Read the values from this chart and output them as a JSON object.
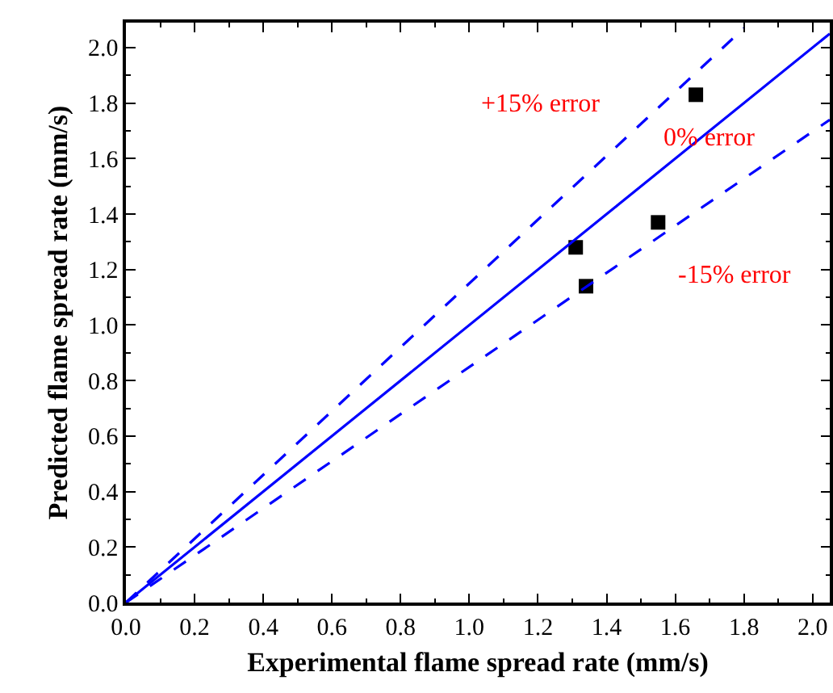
{
  "chart_data": {
    "type": "scatter",
    "xlabel": "Experimental flame spread rate (mm/s)",
    "ylabel": "Predicted flame spread rate (mm/s)",
    "xlim": [
      0,
      2.05
    ],
    "ylim": [
      0,
      2.09
    ],
    "xticks": [
      {
        "value": 0,
        "label": "0.0"
      },
      {
        "value": 0.2,
        "label": "0.2"
      },
      {
        "value": 0.4,
        "label": "0.4"
      },
      {
        "value": 0.6,
        "label": "0.6"
      },
      {
        "value": 0.8,
        "label": "0.8"
      },
      {
        "value": 1,
        "label": "1.0"
      },
      {
        "value": 1.2,
        "label": "1.2"
      },
      {
        "value": 1.4,
        "label": "1.4"
      },
      {
        "value": 1.6,
        "label": "1.6"
      },
      {
        "value": 1.8,
        "label": "1.8"
      },
      {
        "value": 2,
        "label": "2.0"
      }
    ],
    "yticks": [
      {
        "value": 0,
        "label": "0.0"
      },
      0.2,
      0.4,
      0.6,
      0.8,
      {
        "value": 1,
        "label": "1.0"
      },
      1.2,
      1.4,
      1.6,
      1.8,
      {
        "value": 2,
        "label": "2.0"
      }
    ],
    "grid": false,
    "series": [
      {
        "color": "#000000",
        "marker": "square",
        "x": [
          1.31,
          1.34,
          1.55,
          1.66
        ],
        "values": [
          1.28,
          1.14,
          1.37,
          1.83
        ]
      },
      {
        "type": "line",
        "color": "#0000ff",
        "line_style": "solid",
        "marker": "none",
        "x": [
          0,
          2.05
        ],
        "values": [
          0,
          2.05
        ]
      },
      {
        "type": "line",
        "color": "#0000ff",
        "line_style": "dashed",
        "marker": "none",
        "x": [
          0,
          1.8
        ],
        "values": [
          0,
          2.07
        ]
      },
      {
        "type": "line",
        "color": "#0000ff",
        "line_style": "dashed",
        "marker": "none",
        "x": [
          0,
          2.05
        ],
        "values": [
          0,
          1.74
        ]
      }
    ],
    "annotations": [
      "+15% error",
      "0% error",
      "-15% error"
    ]
  }
}
